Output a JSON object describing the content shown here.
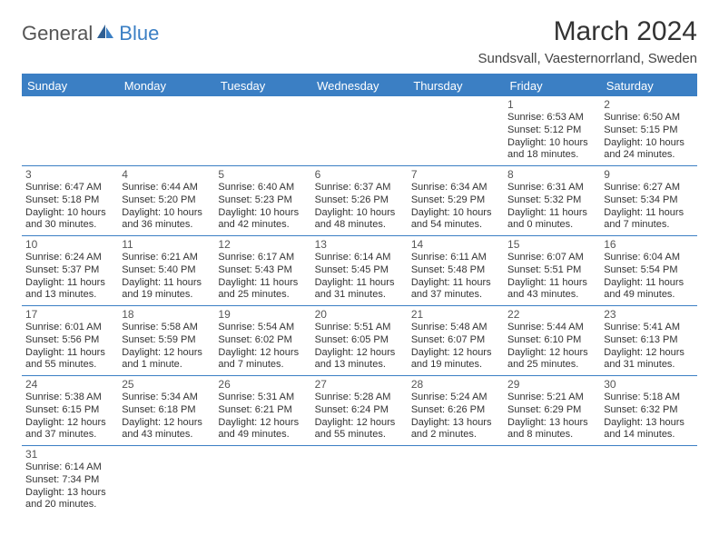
{
  "brand": {
    "part1": "General",
    "part2": "Blue"
  },
  "title": "March 2024",
  "location": "Sundsvall, Vaesternorrland, Sweden",
  "colors": {
    "accent": "#3b7fc4",
    "text": "#333333",
    "bg": "#ffffff"
  },
  "dayHeaders": [
    "Sunday",
    "Monday",
    "Tuesday",
    "Wednesday",
    "Thursday",
    "Friday",
    "Saturday"
  ],
  "weeks": [
    [
      null,
      null,
      null,
      null,
      null,
      {
        "n": "1",
        "sr": "Sunrise: 6:53 AM",
        "ss": "Sunset: 5:12 PM",
        "d1": "Daylight: 10 hours",
        "d2": "and 18 minutes."
      },
      {
        "n": "2",
        "sr": "Sunrise: 6:50 AM",
        "ss": "Sunset: 5:15 PM",
        "d1": "Daylight: 10 hours",
        "d2": "and 24 minutes."
      }
    ],
    [
      {
        "n": "3",
        "sr": "Sunrise: 6:47 AM",
        "ss": "Sunset: 5:18 PM",
        "d1": "Daylight: 10 hours",
        "d2": "and 30 minutes."
      },
      {
        "n": "4",
        "sr": "Sunrise: 6:44 AM",
        "ss": "Sunset: 5:20 PM",
        "d1": "Daylight: 10 hours",
        "d2": "and 36 minutes."
      },
      {
        "n": "5",
        "sr": "Sunrise: 6:40 AM",
        "ss": "Sunset: 5:23 PM",
        "d1": "Daylight: 10 hours",
        "d2": "and 42 minutes."
      },
      {
        "n": "6",
        "sr": "Sunrise: 6:37 AM",
        "ss": "Sunset: 5:26 PM",
        "d1": "Daylight: 10 hours",
        "d2": "and 48 minutes."
      },
      {
        "n": "7",
        "sr": "Sunrise: 6:34 AM",
        "ss": "Sunset: 5:29 PM",
        "d1": "Daylight: 10 hours",
        "d2": "and 54 minutes."
      },
      {
        "n": "8",
        "sr": "Sunrise: 6:31 AM",
        "ss": "Sunset: 5:32 PM",
        "d1": "Daylight: 11 hours",
        "d2": "and 0 minutes."
      },
      {
        "n": "9",
        "sr": "Sunrise: 6:27 AM",
        "ss": "Sunset: 5:34 PM",
        "d1": "Daylight: 11 hours",
        "d2": "and 7 minutes."
      }
    ],
    [
      {
        "n": "10",
        "sr": "Sunrise: 6:24 AM",
        "ss": "Sunset: 5:37 PM",
        "d1": "Daylight: 11 hours",
        "d2": "and 13 minutes."
      },
      {
        "n": "11",
        "sr": "Sunrise: 6:21 AM",
        "ss": "Sunset: 5:40 PM",
        "d1": "Daylight: 11 hours",
        "d2": "and 19 minutes."
      },
      {
        "n": "12",
        "sr": "Sunrise: 6:17 AM",
        "ss": "Sunset: 5:43 PM",
        "d1": "Daylight: 11 hours",
        "d2": "and 25 minutes."
      },
      {
        "n": "13",
        "sr": "Sunrise: 6:14 AM",
        "ss": "Sunset: 5:45 PM",
        "d1": "Daylight: 11 hours",
        "d2": "and 31 minutes."
      },
      {
        "n": "14",
        "sr": "Sunrise: 6:11 AM",
        "ss": "Sunset: 5:48 PM",
        "d1": "Daylight: 11 hours",
        "d2": "and 37 minutes."
      },
      {
        "n": "15",
        "sr": "Sunrise: 6:07 AM",
        "ss": "Sunset: 5:51 PM",
        "d1": "Daylight: 11 hours",
        "d2": "and 43 minutes."
      },
      {
        "n": "16",
        "sr": "Sunrise: 6:04 AM",
        "ss": "Sunset: 5:54 PM",
        "d1": "Daylight: 11 hours",
        "d2": "and 49 minutes."
      }
    ],
    [
      {
        "n": "17",
        "sr": "Sunrise: 6:01 AM",
        "ss": "Sunset: 5:56 PM",
        "d1": "Daylight: 11 hours",
        "d2": "and 55 minutes."
      },
      {
        "n": "18",
        "sr": "Sunrise: 5:58 AM",
        "ss": "Sunset: 5:59 PM",
        "d1": "Daylight: 12 hours",
        "d2": "and 1 minute."
      },
      {
        "n": "19",
        "sr": "Sunrise: 5:54 AM",
        "ss": "Sunset: 6:02 PM",
        "d1": "Daylight: 12 hours",
        "d2": "and 7 minutes."
      },
      {
        "n": "20",
        "sr": "Sunrise: 5:51 AM",
        "ss": "Sunset: 6:05 PM",
        "d1": "Daylight: 12 hours",
        "d2": "and 13 minutes."
      },
      {
        "n": "21",
        "sr": "Sunrise: 5:48 AM",
        "ss": "Sunset: 6:07 PM",
        "d1": "Daylight: 12 hours",
        "d2": "and 19 minutes."
      },
      {
        "n": "22",
        "sr": "Sunrise: 5:44 AM",
        "ss": "Sunset: 6:10 PM",
        "d1": "Daylight: 12 hours",
        "d2": "and 25 minutes."
      },
      {
        "n": "23",
        "sr": "Sunrise: 5:41 AM",
        "ss": "Sunset: 6:13 PM",
        "d1": "Daylight: 12 hours",
        "d2": "and 31 minutes."
      }
    ],
    [
      {
        "n": "24",
        "sr": "Sunrise: 5:38 AM",
        "ss": "Sunset: 6:15 PM",
        "d1": "Daylight: 12 hours",
        "d2": "and 37 minutes."
      },
      {
        "n": "25",
        "sr": "Sunrise: 5:34 AM",
        "ss": "Sunset: 6:18 PM",
        "d1": "Daylight: 12 hours",
        "d2": "and 43 minutes."
      },
      {
        "n": "26",
        "sr": "Sunrise: 5:31 AM",
        "ss": "Sunset: 6:21 PM",
        "d1": "Daylight: 12 hours",
        "d2": "and 49 minutes."
      },
      {
        "n": "27",
        "sr": "Sunrise: 5:28 AM",
        "ss": "Sunset: 6:24 PM",
        "d1": "Daylight: 12 hours",
        "d2": "and 55 minutes."
      },
      {
        "n": "28",
        "sr": "Sunrise: 5:24 AM",
        "ss": "Sunset: 6:26 PM",
        "d1": "Daylight: 13 hours",
        "d2": "and 2 minutes."
      },
      {
        "n": "29",
        "sr": "Sunrise: 5:21 AM",
        "ss": "Sunset: 6:29 PM",
        "d1": "Daylight: 13 hours",
        "d2": "and 8 minutes."
      },
      {
        "n": "30",
        "sr": "Sunrise: 5:18 AM",
        "ss": "Sunset: 6:32 PM",
        "d1": "Daylight: 13 hours",
        "d2": "and 14 minutes."
      }
    ],
    [
      {
        "n": "31",
        "sr": "Sunrise: 6:14 AM",
        "ss": "Sunset: 7:34 PM",
        "d1": "Daylight: 13 hours",
        "d2": "and 20 minutes."
      },
      null,
      null,
      null,
      null,
      null,
      null
    ]
  ]
}
